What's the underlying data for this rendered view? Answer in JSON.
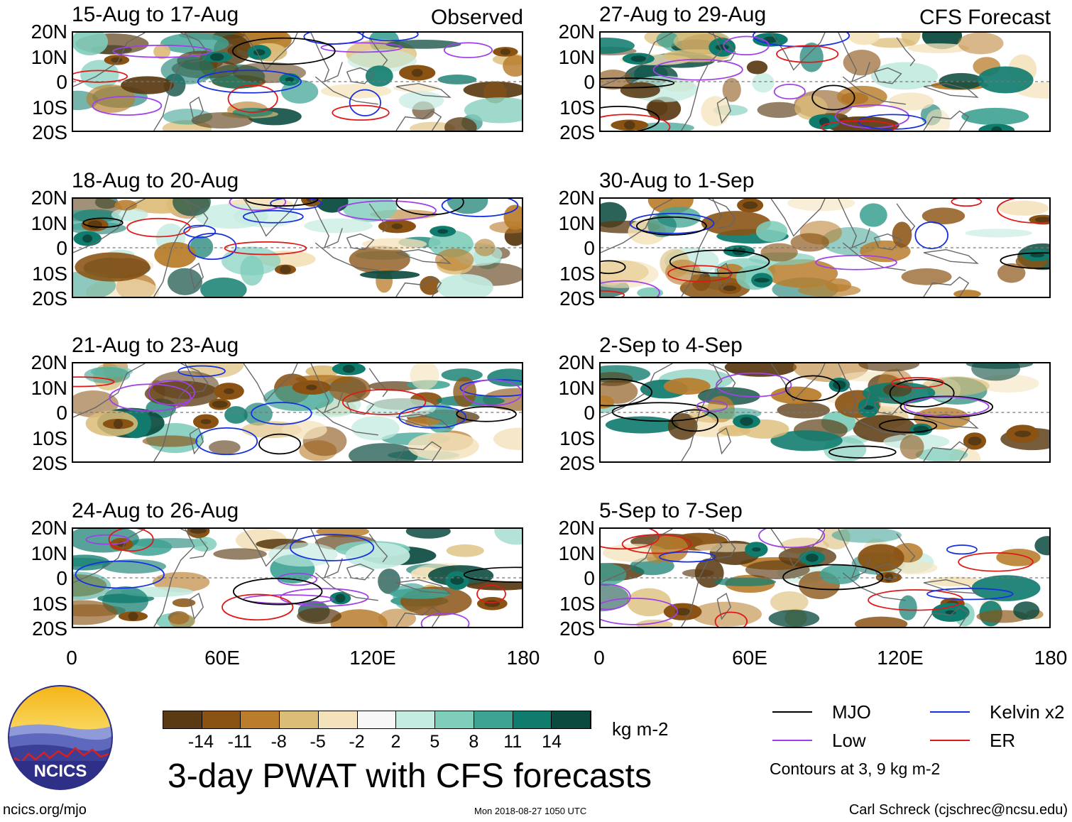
{
  "panels": [
    {
      "title": "15-Aug to 17-Aug",
      "tag": "Observed"
    },
    {
      "title": "27-Aug to 29-Aug",
      "tag": "CFS Forecast"
    },
    {
      "title": "18-Aug to 20-Aug",
      "tag": ""
    },
    {
      "title": "30-Aug to 1-Sep",
      "tag": ""
    },
    {
      "title": "21-Aug to 23-Aug",
      "tag": ""
    },
    {
      "title": "2-Sep to 4-Sep",
      "tag": ""
    },
    {
      "title": "24-Aug to 26-Aug",
      "tag": ""
    },
    {
      "title": "5-Sep to 7-Sep",
      "tag": ""
    }
  ],
  "lat_labels": [
    "20N",
    "10N",
    "0",
    "10S",
    "20S"
  ],
  "lon_labels": [
    "0",
    "60E",
    "120E",
    "180"
  ],
  "colorbar": {
    "colors": [
      "#5a3a12",
      "#8a5314",
      "#b97d2c",
      "#dcbd78",
      "#f4e2bb",
      "#f7f7f7",
      "#c3ebe0",
      "#7fcdbb",
      "#3fa394",
      "#107c6e",
      "#0a4a3f"
    ],
    "labels": [
      "-14",
      "-11",
      "-8",
      "-5",
      "-2",
      "2",
      "5",
      "8",
      "11",
      "14"
    ],
    "units": "kg m-2"
  },
  "main_title": "3-day PWAT with CFS forecasts",
  "legend": {
    "items": [
      {
        "label": "MJO",
        "color": "#000000"
      },
      {
        "label": "Kelvin x2",
        "color": "#1530e0"
      },
      {
        "label": "Low",
        "color": "#a040e8"
      },
      {
        "label": "ER",
        "color": "#e01818"
      }
    ],
    "note": "Contours at 3, 9 kg m-2"
  },
  "logo": {
    "text": "NCICS"
  },
  "footer": {
    "left": "ncics.org/mjo",
    "center": "Mon 2018-08-27 1050 UTC",
    "right": "Carl Schreck (cjschrec@ncsu.edu)"
  }
}
